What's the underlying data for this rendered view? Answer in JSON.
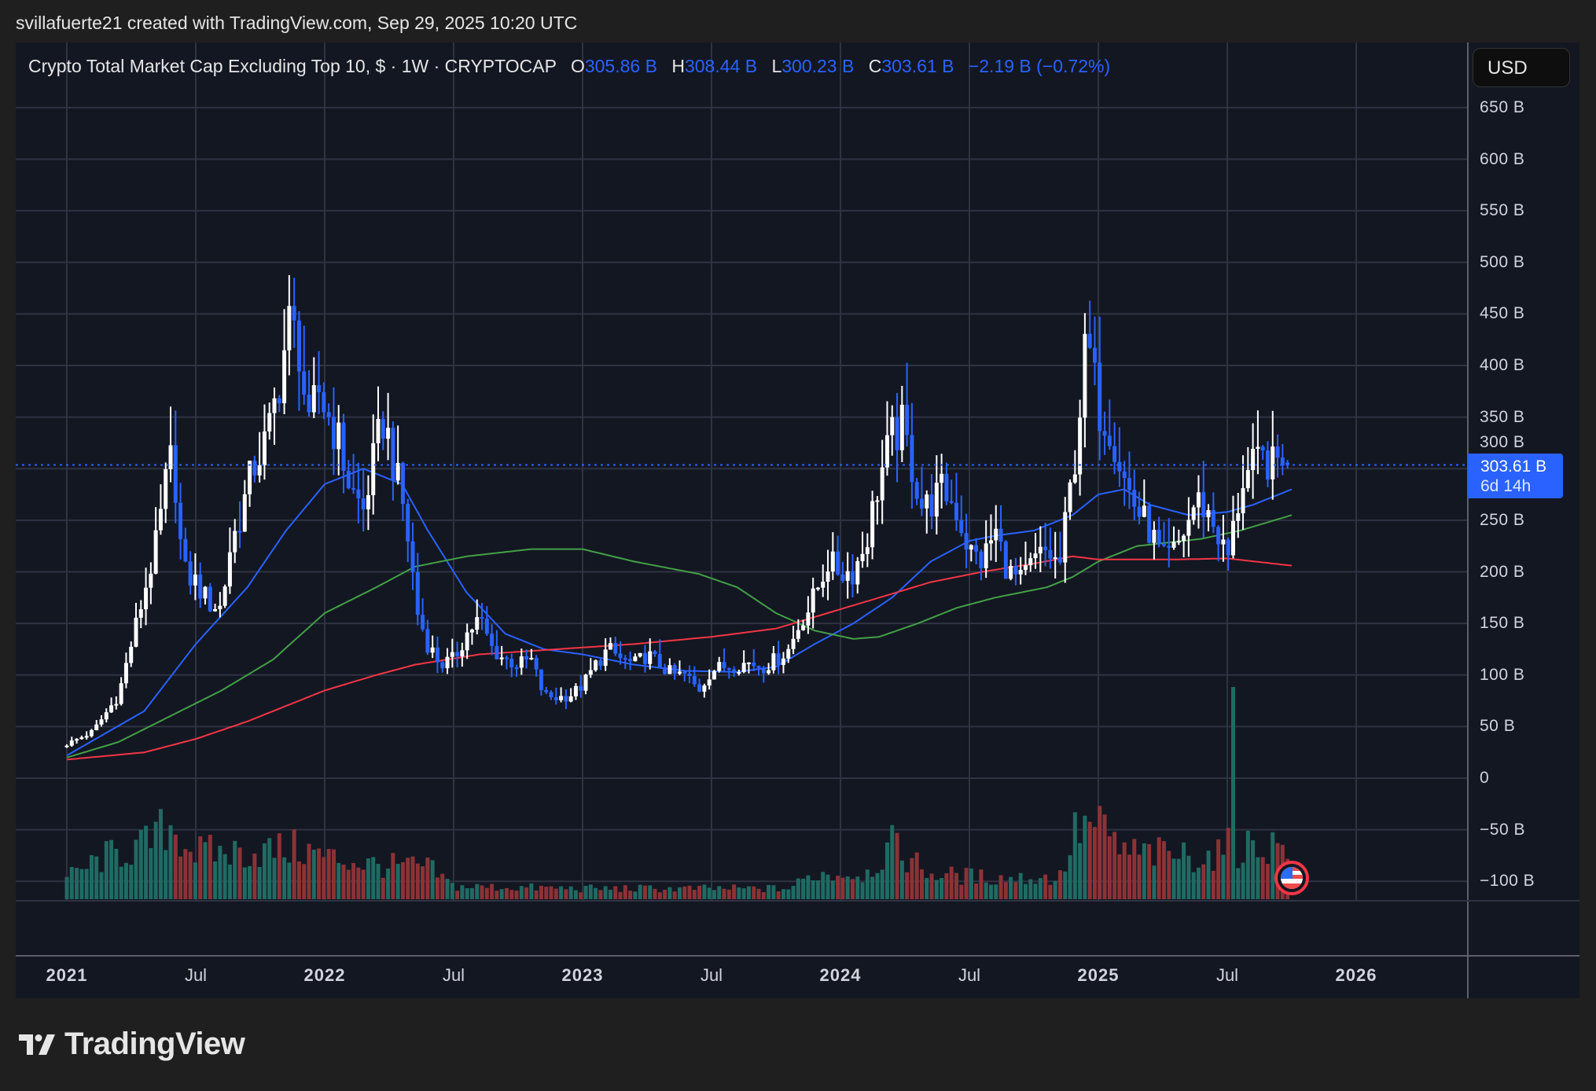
{
  "credit": "svillafuerte21 created with TradingView.com, Sep 29, 2025 10:20 UTC",
  "legend": {
    "title": "Crypto Total Market Cap Excluding Top 10, $ · 1W · CRYPTOCAP",
    "o_label": "O",
    "o": "305.86 B",
    "h_label": "H",
    "h": "308.44 B",
    "l_label": "L",
    "l": "300.23 B",
    "c_label": "C",
    "c": "303.61 B",
    "change": "−2.19 B (−0.72%)"
  },
  "currency_button": "USD",
  "price_label": {
    "value": "303.61 B",
    "countdown": "6d 14h"
  },
  "logo_text": "TradingView",
  "colors": {
    "up": "#ffffff",
    "down": "#2962ff",
    "ma_blue": "#2962ff",
    "ma_green": "#43a047",
    "ma_red": "#f23645",
    "vol_up": "#1f6b63",
    "vol_down": "#8c3236",
    "bg": "#131722",
    "grid": "#2f3342"
  },
  "chart_data": {
    "type": "candlestick",
    "title": "Crypto Total Market Cap Excluding Top 10",
    "interval": "1W",
    "ylim": [
      -125,
      700
    ],
    "y_ticks": [
      "650 B",
      "600 B",
      "550 B",
      "500 B",
      "450 B",
      "400 B",
      "350 B",
      "300 B",
      "250 B",
      "200 B",
      "150 B",
      "100 B",
      "50 B",
      "0",
      "−50 B",
      "−100 B"
    ],
    "y_tick_values": [
      650,
      600,
      550,
      500,
      450,
      400,
      350,
      300,
      250,
      200,
      150,
      100,
      50,
      0,
      -50,
      -100
    ],
    "x_ticks": [
      {
        "t": 2021.0,
        "label": "2021",
        "year": true
      },
      {
        "t": 2021.5,
        "label": "Jul",
        "year": false
      },
      {
        "t": 2022.0,
        "label": "2022",
        "year": true
      },
      {
        "t": 2022.5,
        "label": "Jul",
        "year": false
      },
      {
        "t": 2023.0,
        "label": "2023",
        "year": true
      },
      {
        "t": 2023.5,
        "label": "Jul",
        "year": false
      },
      {
        "t": 2024.0,
        "label": "2024",
        "year": true
      },
      {
        "t": 2024.5,
        "label": "Jul",
        "year": false
      },
      {
        "t": 2025.0,
        "label": "2025",
        "year": true
      },
      {
        "t": 2025.5,
        "label": "Jul",
        "year": false
      },
      {
        "t": 2026.0,
        "label": "2026",
        "year": true
      }
    ],
    "start": 2021.0,
    "weeks": 248,
    "last_candle": {
      "open": 305.86,
      "high": 308.44,
      "low": 300.23,
      "close": 303.61
    },
    "close_anchors": [
      [
        2021.0,
        33
      ],
      [
        2021.1,
        45
      ],
      [
        2021.2,
        80
      ],
      [
        2021.25,
        130
      ],
      [
        2021.3,
        180
      ],
      [
        2021.35,
        230
      ],
      [
        2021.38,
        280
      ],
      [
        2021.4,
        310
      ],
      [
        2021.42,
        290
      ],
      [
        2021.45,
        200
      ],
      [
        2021.5,
        190
      ],
      [
        2021.55,
        170
      ],
      [
        2021.6,
        165
      ],
      [
        2021.63,
        220
      ],
      [
        2021.68,
        260
      ],
      [
        2021.72,
        300
      ],
      [
        2021.78,
        330
      ],
      [
        2021.82,
        380
      ],
      [
        2021.86,
        440
      ],
      [
        2021.9,
        420
      ],
      [
        2021.94,
        330
      ],
      [
        2021.97,
        380
      ],
      [
        2022.0,
        360
      ],
      [
        2022.05,
        330
      ],
      [
        2022.1,
        280
      ],
      [
        2022.15,
        260
      ],
      [
        2022.2,
        320
      ],
      [
        2022.23,
        350
      ],
      [
        2022.27,
        300
      ],
      [
        2022.3,
        270
      ],
      [
        2022.33,
        220
      ],
      [
        2022.36,
        160
      ],
      [
        2022.4,
        130
      ],
      [
        2022.45,
        110
      ],
      [
        2022.5,
        115
      ],
      [
        2022.55,
        140
      ],
      [
        2022.6,
        155
      ],
      [
        2022.65,
        125
      ],
      [
        2022.7,
        115
      ],
      [
        2022.75,
        110
      ],
      [
        2022.8,
        115
      ],
      [
        2022.85,
        80
      ],
      [
        2022.9,
        78
      ],
      [
        2022.95,
        80
      ],
      [
        2023.0,
        90
      ],
      [
        2023.05,
        110
      ],
      [
        2023.1,
        125
      ],
      [
        2023.15,
        115
      ],
      [
        2023.2,
        110
      ],
      [
        2023.25,
        120
      ],
      [
        2023.3,
        110
      ],
      [
        2023.35,
        100
      ],
      [
        2023.4,
        100
      ],
      [
        2023.45,
        85
      ],
      [
        2023.5,
        105
      ],
      [
        2023.55,
        108
      ],
      [
        2023.6,
        110
      ],
      [
        2023.65,
        112
      ],
      [
        2023.7,
        108
      ],
      [
        2023.75,
        115
      ],
      [
        2023.8,
        125
      ],
      [
        2023.85,
        155
      ],
      [
        2023.88,
        165
      ],
      [
        2023.92,
        190
      ],
      [
        2023.95,
        210
      ],
      [
        2024.0,
        200
      ],
      [
        2024.05,
        200
      ],
      [
        2024.1,
        230
      ],
      [
        2024.15,
        290
      ],
      [
        2024.2,
        330
      ],
      [
        2024.24,
        340
      ],
      [
        2024.28,
        300
      ],
      [
        2024.32,
        260
      ],
      [
        2024.36,
        270
      ],
      [
        2024.4,
        280
      ],
      [
        2024.45,
        260
      ],
      [
        2024.5,
        220
      ],
      [
        2024.55,
        210
      ],
      [
        2024.6,
        240
      ],
      [
        2024.65,
        200
      ],
      [
        2024.7,
        190
      ],
      [
        2024.75,
        210
      ],
      [
        2024.8,
        220
      ],
      [
        2024.85,
        205
      ],
      [
        2024.88,
        260
      ],
      [
        2024.92,
        330
      ],
      [
        2024.94,
        400
      ],
      [
        2024.96,
        420
      ],
      [
        2025.0,
        360
      ],
      [
        2025.05,
        340
      ],
      [
        2025.1,
        290
      ],
      [
        2025.15,
        260
      ],
      [
        2025.2,
        240
      ],
      [
        2025.25,
        210
      ],
      [
        2025.3,
        220
      ],
      [
        2025.35,
        250
      ],
      [
        2025.38,
        270
      ],
      [
        2025.42,
        260
      ],
      [
        2025.46,
        240
      ],
      [
        2025.5,
        210
      ],
      [
        2025.53,
        250
      ],
      [
        2025.56,
        290
      ],
      [
        2025.6,
        300
      ],
      [
        2025.65,
        310
      ],
      [
        2025.68,
        300
      ],
      [
        2025.72,
        320
      ],
      [
        2025.75,
        305.86
      ]
    ],
    "moving_averages": [
      {
        "name": "MA blue",
        "color": "#2962ff",
        "points": [
          [
            2021.0,
            22
          ],
          [
            2021.3,
            65
          ],
          [
            2021.5,
            130
          ],
          [
            2021.7,
            185
          ],
          [
            2021.85,
            240
          ],
          [
            2022.0,
            285
          ],
          [
            2022.15,
            300
          ],
          [
            2022.3,
            285
          ],
          [
            2022.4,
            240
          ],
          [
            2022.55,
            180
          ],
          [
            2022.7,
            140
          ],
          [
            2022.85,
            125
          ],
          [
            2023.0,
            120
          ],
          [
            2023.2,
            110
          ],
          [
            2023.4,
            104
          ],
          [
            2023.6,
            103
          ],
          [
            2023.75,
            108
          ],
          [
            2023.9,
            130
          ],
          [
            2024.05,
            150
          ],
          [
            2024.2,
            175
          ],
          [
            2024.35,
            210
          ],
          [
            2024.5,
            230
          ],
          [
            2024.6,
            235
          ],
          [
            2024.75,
            240
          ],
          [
            2024.9,
            255
          ],
          [
            2025.0,
            275
          ],
          [
            2025.1,
            280
          ],
          [
            2025.2,
            265
          ],
          [
            2025.35,
            255
          ],
          [
            2025.5,
            258
          ],
          [
            2025.6,
            265
          ],
          [
            2025.75,
            280
          ]
        ]
      },
      {
        "name": "MA green",
        "color": "#43a047",
        "points": [
          [
            2021.0,
            20
          ],
          [
            2021.2,
            35
          ],
          [
            2021.4,
            60
          ],
          [
            2021.6,
            85
          ],
          [
            2021.8,
            115
          ],
          [
            2022.0,
            160
          ],
          [
            2022.2,
            185
          ],
          [
            2022.35,
            205
          ],
          [
            2022.55,
            215
          ],
          [
            2022.8,
            222
          ],
          [
            2023.0,
            222
          ],
          [
            2023.2,
            210
          ],
          [
            2023.45,
            198
          ],
          [
            2023.6,
            185
          ],
          [
            2023.75,
            160
          ],
          [
            2023.9,
            143
          ],
          [
            2024.05,
            135
          ],
          [
            2024.15,
            137
          ],
          [
            2024.3,
            150
          ],
          [
            2024.45,
            165
          ],
          [
            2024.6,
            175
          ],
          [
            2024.8,
            185
          ],
          [
            2024.9,
            195
          ],
          [
            2025.0,
            210
          ],
          [
            2025.15,
            225
          ],
          [
            2025.4,
            232
          ],
          [
            2025.55,
            240
          ],
          [
            2025.75,
            255
          ]
        ]
      },
      {
        "name": "MA red",
        "color": "#f23645",
        "points": [
          [
            2021.0,
            18
          ],
          [
            2021.3,
            25
          ],
          [
            2021.5,
            38
          ],
          [
            2021.7,
            55
          ],
          [
            2021.85,
            70
          ],
          [
            2022.0,
            85
          ],
          [
            2022.2,
            100
          ],
          [
            2022.35,
            110
          ],
          [
            2022.6,
            120
          ],
          [
            2022.9,
            125
          ],
          [
            2023.2,
            130
          ],
          [
            2023.5,
            137
          ],
          [
            2023.75,
            145
          ],
          [
            2023.95,
            160
          ],
          [
            2024.15,
            175
          ],
          [
            2024.35,
            190
          ],
          [
            2024.55,
            200
          ],
          [
            2024.75,
            208
          ],
          [
            2024.9,
            215
          ],
          [
            2025.0,
            212
          ],
          [
            2025.3,
            212
          ],
          [
            2025.5,
            213
          ],
          [
            2025.75,
            206
          ]
        ]
      }
    ],
    "volume_relative_anchors": [
      [
        2021.0,
        10
      ],
      [
        2021.15,
        20
      ],
      [
        2021.3,
        25
      ],
      [
        2021.4,
        35
      ],
      [
        2021.5,
        22
      ],
      [
        2021.7,
        22
      ],
      [
        2021.9,
        24
      ],
      [
        2022.0,
        20
      ],
      [
        2022.2,
        16
      ],
      [
        2022.4,
        15
      ],
      [
        2022.5,
        6
      ],
      [
        2023.0,
        5
      ],
      [
        2023.8,
        5
      ],
      [
        2023.9,
        12
      ],
      [
        2024.1,
        12
      ],
      [
        2024.2,
        25
      ],
      [
        2024.35,
        12
      ],
      [
        2024.6,
        10
      ],
      [
        2024.85,
        10
      ],
      [
        2024.92,
        34
      ],
      [
        2025.0,
        34
      ],
      [
        2025.1,
        22
      ],
      [
        2025.45,
        20
      ],
      [
        2025.5,
        24
      ],
      [
        2025.75,
        26
      ]
    ],
    "volume_spike": {
      "t": 2025.52,
      "relative": 100
    },
    "current_price": 303.61
  }
}
